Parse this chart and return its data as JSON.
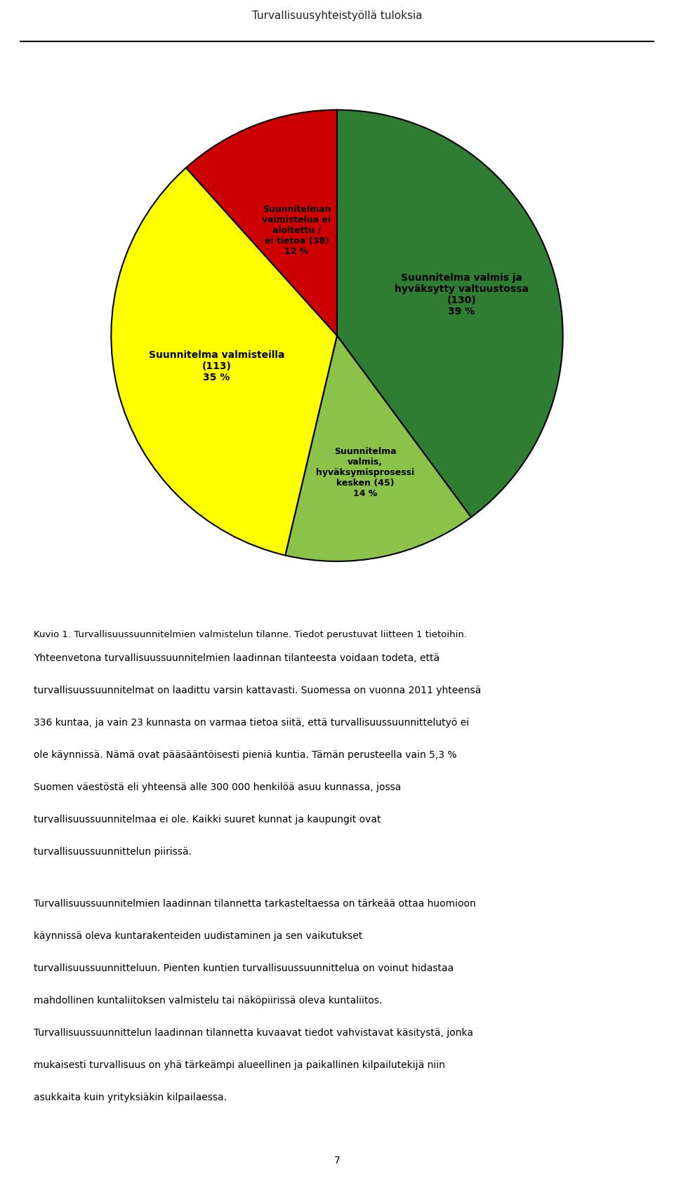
{
  "page_header": "Turvallisuusyhteistyöllä tuloksia",
  "figure_label": "Kuvio 1. Turvallisuussuunnitelmien valmistelun tilanne. Tiedot perustuvat liitteen 1 tietoihin.",
  "slices": [
    {
      "label": "Suunnitelma valmis ja\nhyväksytty valtuustossa\n(130)\n39 %",
      "value": 130,
      "pct": 39,
      "color": "#2E7D32",
      "text_color": "#000000",
      "label_r": 0.58,
      "label_ha": "center"
    },
    {
      "label": "Suunnitelma\nvalmis,\nhyväksymisprosessi\nkesken (45)\n14 %",
      "value": 45,
      "pct": 14,
      "color": "#8BC34A",
      "text_color": "#000000",
      "label_r": 0.62,
      "label_ha": "center"
    },
    {
      "label": "Suunnitelma valmisteilla\n(113)\n35 %",
      "value": 113,
      "pct": 35,
      "color": "#FFFF00",
      "text_color": "#000000",
      "label_r": 0.55,
      "label_ha": "center"
    },
    {
      "label": "Suunnitelman\nvalmistelua ei\naloitettu /\nei tietoa (38)\n12 %",
      "value": 38,
      "pct": 12,
      "color": "#CC0000",
      "text_color": "#000000",
      "label_r": 0.5,
      "label_ha": "center"
    }
  ],
  "body_paragraphs": [
    "Yhteenvetona turvallisuussuunnitelmien laadinnan tilanteesta voidaan todeta, että turvallisuussuunnitelmat on laadittu varsin kattavasti. Suomessa on vuonna 2011 yhteensä 336 kuntaa, ja vain 23 kunnasta on varmaa tietoa siitä, että turvallisuussuunnittelutyö ei ole käynnissä. Nämä ovat pääsääntöisesti pieniä kuntia. Tämän perusteella vain 5,3 % Suomen väestöstä eli yhteensä alle 300 000 henkilöä asuu kunnassa, jossa turvallisuussuunnitelmaa ei ole. Kaikki suuret kunnat ja kaupungit ovat turvallisuussuunnittelun piirissä.",
    "Turvallisuussuunnitelmien laadinnan tilannetta tarkasteltaessa on tärkeää ottaa huomioon käynnissä oleva kuntarakenteiden uudistaminen ja sen vaikutukset turvallisuussuunnitteluun. Pienten kuntien turvallisuussuunnittelua on voinut hidastaa mahdollinen kuntaliitoksen valmistelu tai näköpiirissä oleva kuntaliitos. Turvallisuussuunnittelun laadinnan tilannetta kuvaavat tiedot vahvistavat käsitystä, jonka mukaisesti turvallisuus on yhä tärkeämpi alueellinen ja paikallinen kilpailutekijä niin asukkaita kuin yrityksiäkin kilpailaessa."
  ],
  "page_number": "7",
  "background_color": "#FFFFFF",
  "pie_edge_color": "#000000",
  "pie_linewidth": 1.5,
  "header_fontsize": 11,
  "caption_fontsize": 9.5,
  "body_fontsize": 10,
  "label_fontsize_large": 10,
  "label_fontsize_small": 9
}
